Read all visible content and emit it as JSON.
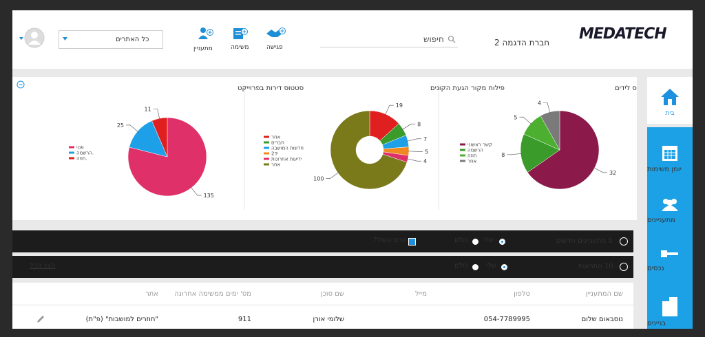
{
  "header": {
    "logo": "MEDATECH",
    "company": "חברת הדגמה 2",
    "search": "חיפוש",
    "actions": [
      "פגישה",
      "משימה",
      "מתעניין"
    ],
    "site_select": "כל האתרים"
  },
  "sidebar": [
    "בית",
    "יומן משימות",
    "מתעניינים",
    "נכסים",
    "בניינים"
  ],
  "charts": [
    {
      "type": "pie",
      "title": "סטטוס לידים",
      "categories": [
        "קשר ראשוני",
        "הרשמה",
        "חוזה",
        "אחר"
      ],
      "values": [
        32,
        8,
        5,
        4
      ],
      "colors": [
        "#8b1a4a",
        "#3a9a2a",
        "#4caf30",
        "#7a7a7a"
      ]
    },
    {
      "type": "donut",
      "title": "פילוח מקור הגעת הקונים",
      "categories": [
        "אחר",
        "חברים",
        "חדשות המושבה",
        "יד2",
        "ידיעות אחרונות",
        "אחר"
      ],
      "values": [
        19,
        8,
        7,
        5,
        4,
        100
      ],
      "colors": [
        "#e02020",
        "#3a9a2a",
        "#1ea0e8",
        "#f08a20",
        "#e0306a",
        "#7a7a1a"
      ]
    },
    {
      "type": "pie",
      "title": "סטטוס דירות בפרוייקט",
      "categories": [
        "פנוי",
        "הרשמה.",
        "חוזה."
      ],
      "values": [
        135,
        25,
        11
      ],
      "colors": [
        "#e0306a",
        "#1ea0e8",
        "#e02020"
      ]
    }
  ],
  "leads_bar": {
    "count_label": "0 מתעניינים חדשים",
    "mine": "שלי",
    "all": "כולם",
    "untreated": "טרם טופל?"
  },
  "alerts_bar": {
    "count_label": "10 התראות",
    "mine": "שלי",
    "all": "כולם",
    "show_all": "הצג הכל"
  },
  "table": {
    "columns": [
      "שם המתעניין",
      "טלפון",
      "מייל",
      "שם סוכן",
      "מס' ימים ממשימה אחרונה",
      "אתר"
    ],
    "rows": [
      {
        "name": "נוסבאום שלום",
        "phone": "054-7789995",
        "agent": "שלומי אורן",
        "days": 911,
        "site": "\"חוזרים למושבות\" (פ\"ת)"
      }
    ]
  }
}
